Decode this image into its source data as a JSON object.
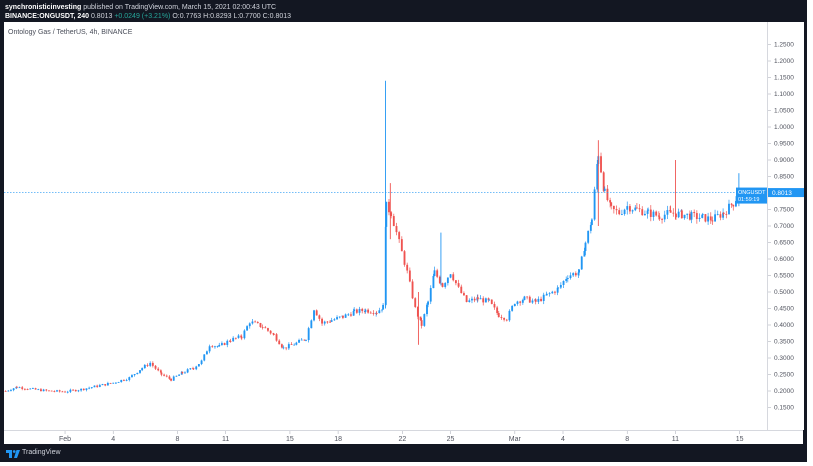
{
  "header": {
    "publisher_user": "synchronisticinvesting",
    "publisher_suffix": "published on TradingView.com, March 15, 2021 02:00:43 UTC",
    "symbol": "BINANCE:ONGUSDT, 240",
    "last_price": "0.8013",
    "change": "+0.0249 (+3.21%)",
    "ohlc": "O:0.7763 H:0.8293 L:0.7700 C:0.8013"
  },
  "pane_title": "Ontology Gas / TetherUS, 4h, BINANCE",
  "price_label": {
    "symbol": "ONGUSDT",
    "price": "0.8013",
    "countdown": "01:59:19"
  },
  "footer": {
    "brand": "TradingView"
  },
  "colors": {
    "up": "#2196f3",
    "down": "#ef5350",
    "price_line": "#2196f3",
    "background": "#ffffff",
    "frame": "#131722"
  },
  "chart_data": {
    "type": "candlestick",
    "title": "Ontology Gas / TetherUS, 4h, BINANCE",
    "xlabel": "",
    "ylabel": "",
    "ylim": [
      0.1,
      1.3
    ],
    "y_ticks": [
      "1.2500",
      "1.2000",
      "1.1500",
      "1.1000",
      "1.0500",
      "1.0000",
      "0.9500",
      "0.9000",
      "0.8500",
      "0.8000",
      "0.7500",
      "0.7000",
      "0.6500",
      "0.6000",
      "0.5500",
      "0.5000",
      "0.4500",
      "0.4000",
      "0.3500",
      "0.3000",
      "0.2500",
      "0.2000",
      "0.1500"
    ],
    "x_ticks": [
      {
        "day": 32,
        "label": "Feb"
      },
      {
        "day": 35,
        "label": "4"
      },
      {
        "day": 39,
        "label": "8"
      },
      {
        "day": 42,
        "label": "11"
      },
      {
        "day": 46,
        "label": "15"
      },
      {
        "day": 49,
        "label": "18"
      },
      {
        "day": 53,
        "label": "22"
      },
      {
        "day": 56,
        "label": "25"
      },
      {
        "day": 60,
        "label": "Mar"
      },
      {
        "day": 63,
        "label": "4"
      },
      {
        "day": 67,
        "label": "8"
      },
      {
        "day": 70,
        "label": "11"
      },
      {
        "day": 74,
        "label": "15"
      }
    ],
    "x_range_days": [
      28.2,
      75.7
    ],
    "last_price": 0.8013,
    "series": [
      {
        "day": 28.3,
        "close": 0.2
      },
      {
        "day": 29.0,
        "close": 0.212
      },
      {
        "day": 30.0,
        "close": 0.205
      },
      {
        "day": 31.0,
        "close": 0.2
      },
      {
        "day": 32.0,
        "close": 0.198
      },
      {
        "day": 33.0,
        "close": 0.205
      },
      {
        "day": 34.0,
        "close": 0.215
      },
      {
        "day": 35.0,
        "close": 0.225
      },
      {
        "day": 36.0,
        "close": 0.24
      },
      {
        "day": 36.8,
        "close": 0.27
      },
      {
        "day": 37.3,
        "close": 0.285
      },
      {
        "day": 38.0,
        "close": 0.25
      },
      {
        "day": 38.6,
        "close": 0.235
      },
      {
        "day": 39.3,
        "close": 0.255
      },
      {
        "day": 40.0,
        "close": 0.27
      },
      {
        "day": 40.5,
        "close": 0.29
      },
      {
        "day": 41.0,
        "close": 0.34
      },
      {
        "day": 41.6,
        "close": 0.335
      },
      {
        "day": 42.3,
        "close": 0.355
      },
      {
        "day": 43.0,
        "close": 0.365
      },
      {
        "day": 43.5,
        "close": 0.41
      },
      {
        "day": 44.3,
        "close": 0.395
      },
      {
        "day": 45.0,
        "close": 0.37
      },
      {
        "day": 45.6,
        "close": 0.33
      },
      {
        "day": 46.4,
        "close": 0.345
      },
      {
        "day": 47.0,
        "close": 0.36
      },
      {
        "day": 47.5,
        "close": 0.45
      },
      {
        "day": 48.0,
        "close": 0.405
      },
      {
        "day": 48.6,
        "close": 0.415
      },
      {
        "day": 49.3,
        "close": 0.425
      },
      {
        "day": 50.0,
        "close": 0.44
      },
      {
        "day": 50.7,
        "close": 0.445
      },
      {
        "day": 51.4,
        "close": 0.44
      },
      {
        "day": 51.8,
        "close": 0.455
      },
      {
        "day": 52.0,
        "close": 0.76
      },
      {
        "day": 52.3,
        "close": 0.74
      },
      {
        "day": 52.8,
        "close": 0.65
      },
      {
        "day": 53.3,
        "close": 0.56
      },
      {
        "day": 53.8,
        "close": 0.45
      },
      {
        "day": 54.2,
        "close": 0.4
      },
      {
        "day": 54.6,
        "close": 0.47
      },
      {
        "day": 55.0,
        "close": 0.56
      },
      {
        "day": 55.5,
        "close": 0.52
      },
      {
        "day": 56.0,
        "close": 0.56
      },
      {
        "day": 56.5,
        "close": 0.51
      },
      {
        "day": 57.0,
        "close": 0.47
      },
      {
        "day": 57.7,
        "close": 0.48
      },
      {
        "day": 58.4,
        "close": 0.47
      },
      {
        "day": 59.0,
        "close": 0.43
      },
      {
        "day": 59.5,
        "close": 0.42
      },
      {
        "day": 60.0,
        "close": 0.47
      },
      {
        "day": 60.6,
        "close": 0.48
      },
      {
        "day": 61.3,
        "close": 0.47
      },
      {
        "day": 62.0,
        "close": 0.49
      },
      {
        "day": 62.7,
        "close": 0.51
      },
      {
        "day": 63.3,
        "close": 0.55
      },
      {
        "day": 64.0,
        "close": 0.56
      },
      {
        "day": 64.4,
        "close": 0.65
      },
      {
        "day": 64.8,
        "close": 0.72
      },
      {
        "day": 65.2,
        "close": 0.92
      },
      {
        "day": 65.6,
        "close": 0.8
      },
      {
        "day": 66.0,
        "close": 0.75
      },
      {
        "day": 66.5,
        "close": 0.74
      },
      {
        "day": 67.0,
        "close": 0.76
      },
      {
        "day": 67.6,
        "close": 0.75
      },
      {
        "day": 68.3,
        "close": 0.74
      },
      {
        "day": 69.0,
        "close": 0.73
      },
      {
        "day": 69.7,
        "close": 0.74
      },
      {
        "day": 70.4,
        "close": 0.735
      },
      {
        "day": 71.0,
        "close": 0.73
      },
      {
        "day": 71.7,
        "close": 0.725
      },
      {
        "day": 72.3,
        "close": 0.72
      },
      {
        "day": 73.0,
        "close": 0.74
      },
      {
        "day": 73.6,
        "close": 0.77
      },
      {
        "day": 74.0,
        "close": 0.801
      }
    ]
  }
}
